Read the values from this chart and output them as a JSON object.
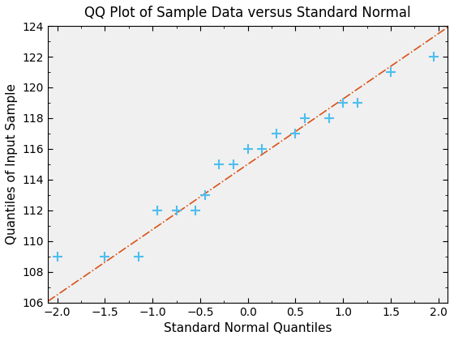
{
  "title": "QQ Plot of Sample Data versus Standard Normal",
  "xlabel": "Standard Normal Quantiles",
  "ylabel": "Quantiles of Input Sample",
  "xlim": [
    -2.1,
    2.1
  ],
  "ylim": [
    106,
    124
  ],
  "xticks": [
    -2,
    -1.5,
    -1,
    -0.5,
    0,
    0.5,
    1,
    1.5,
    2
  ],
  "yticks": [
    106,
    108,
    110,
    112,
    114,
    116,
    118,
    120,
    122,
    124
  ],
  "scatter_x": [
    -2.0,
    -1.5,
    -1.15,
    -0.95,
    -0.75,
    -0.55,
    -0.45,
    -0.3,
    -0.15,
    0.0,
    0.15,
    0.3,
    0.5,
    0.6,
    0.85,
    1.0,
    1.15,
    1.5,
    1.95
  ],
  "scatter_y": [
    109,
    109,
    109,
    112,
    112,
    112,
    113,
    115,
    115,
    116,
    116,
    117,
    117,
    118,
    118,
    119,
    119,
    121,
    122
  ],
  "scatter_color": "#4DBEEE",
  "scatter_marker": "+",
  "scatter_markersize": 8,
  "scatter_linewidth": 1.5,
  "line_x_start": -2.1,
  "line_x_end": 2.1,
  "line_slope": 4.25,
  "line_intercept": 115.0,
  "line_color": "#D95319",
  "line_style": "-.",
  "line_width": 1.2,
  "title_fontsize": 12,
  "label_fontsize": 11,
  "tick_fontsize": 10,
  "axes_bg_color": "#F0F0F0",
  "fig_bg_color": "#ffffff"
}
